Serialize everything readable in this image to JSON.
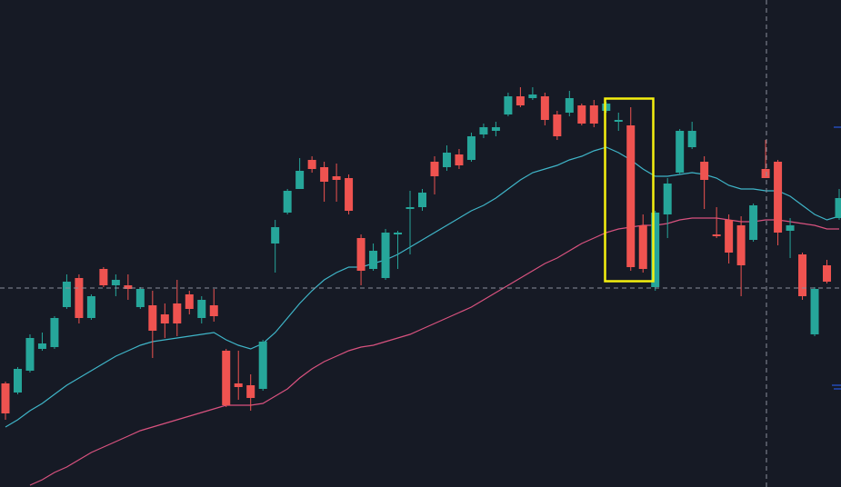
{
  "chart_data": {
    "type": "candlestick",
    "ylim": [
      0,
      536
    ],
    "up_color": "#26a69a",
    "down_color": "#ef5350",
    "open": [
      114,
      104,
      128,
      152,
      154,
      198,
      230,
      186,
      240,
      222,
      222,
      198,
      200,
      190,
      202,
      212,
      186,
      200,
      150,
      114,
      112,
      108,
      268,
      302,
      328,
      360,
      352,
      342,
      340,
      274,
      240,
      230,
      278,
      306,
      308,
      358,
      352,
      366,
      360,
      388,
      392,
      410,
      430,
      428,
      430,
      410,
      412,
      420,
      420,
      414,
      402,
      398,
      288,
      220,
      300,
      346,
      374,
      358,
      278,
      294,
      288,
      272,
      350,
      358,
      282,
      256,
      168,
      244,
      296
    ],
    "high": [
      116,
      132,
      168,
      170,
      188,
      234,
      234,
      212,
      242,
      234,
      234,
      220,
      216,
      202,
      228,
      216,
      210,
      218,
      152,
      150,
      124,
      162,
      294,
      328,
      362,
      364,
      358,
      356,
      344,
      278,
      268,
      284,
      282,
      326,
      328,
      364,
      376,
      372,
      390,
      400,
      402,
      434,
      440,
      440,
      434,
      414,
      436,
      422,
      426,
      424,
      412,
      418,
      300,
      304,
      340,
      394,
      402,
      364,
      308,
      300,
      298,
      312,
      382,
      360,
      296,
      258,
      220,
      250,
      328
    ],
    "low": [
      74,
      102,
      126,
      150,
      152,
      196,
      180,
      184,
      220,
      210,
      206,
      196,
      142,
      164,
      166,
      190,
      180,
      182,
      88,
      96,
      84,
      106,
      236,
      300,
      328,
      346,
      314,
      314,
      300,
      222,
      238,
      228,
      240,
      256,
      304,
      322,
      348,
      350,
      358,
      384,
      386,
      408,
      418,
      426,
      398,
      382,
      408,
      398,
      396,
      412,
      392,
      238,
      236,
      216,
      274,
      344,
      372,
      306,
      274,
      246,
      210,
      270,
      340,
      266,
      252,
      206,
      166,
      224,
      294
    ],
    "close": [
      81,
      130,
      164,
      158,
      186,
      226,
      186,
      210,
      222,
      228,
      218,
      218,
      172,
      180,
      180,
      196,
      206,
      188,
      90,
      110,
      98,
      160,
      286,
      326,
      348,
      350,
      336,
      338,
      304,
      238,
      260,
      280,
      280,
      308,
      324,
      342,
      368,
      354,
      386,
      396,
      396,
      430,
      420,
      432,
      404,
      386,
      428,
      400,
      400,
      422,
      404,
      242,
      240,
      302,
      334,
      392,
      392,
      338,
      276,
      258,
      244,
      310,
      340,
      280,
      288,
      210,
      218,
      226,
      318
    ],
    "series": [
      {
        "color": "#3fb5c8",
        "values": [
          66,
          74,
          84,
          92,
          102,
          112,
          120,
          128,
          136,
          144,
          150,
          156,
          160,
          162,
          164,
          166,
          168,
          170,
          162,
          156,
          152,
          158,
          170,
          186,
          202,
          216,
          228,
          236,
          242,
          242,
          246,
          250,
          256,
          264,
          272,
          280,
          288,
          296,
          304,
          310,
          318,
          328,
          338,
          346,
          350,
          354,
          360,
          364,
          370,
          374,
          368,
          360,
          350,
          342,
          342,
          344,
          346,
          344,
          340,
          332,
          328,
          328,
          326,
          326,
          320,
          310,
          300,
          294,
          298
        ]
      },
      {
        "color": "#d9527f",
        "values": [
          null,
          null,
          2,
          8,
          16,
          22,
          30,
          38,
          44,
          50,
          56,
          62,
          66,
          70,
          74,
          78,
          82,
          86,
          90,
          90,
          90,
          92,
          100,
          108,
          120,
          130,
          138,
          144,
          150,
          154,
          156,
          160,
          164,
          168,
          174,
          180,
          186,
          192,
          198,
          206,
          214,
          222,
          230,
          238,
          246,
          252,
          260,
          268,
          274,
          280,
          284,
          286,
          288,
          288,
          290,
          294,
          296,
          296,
          296,
          294,
          292,
          292,
          294,
          294,
          292,
          290,
          288,
          284,
          284
        ]
      }
    ]
  }
}
